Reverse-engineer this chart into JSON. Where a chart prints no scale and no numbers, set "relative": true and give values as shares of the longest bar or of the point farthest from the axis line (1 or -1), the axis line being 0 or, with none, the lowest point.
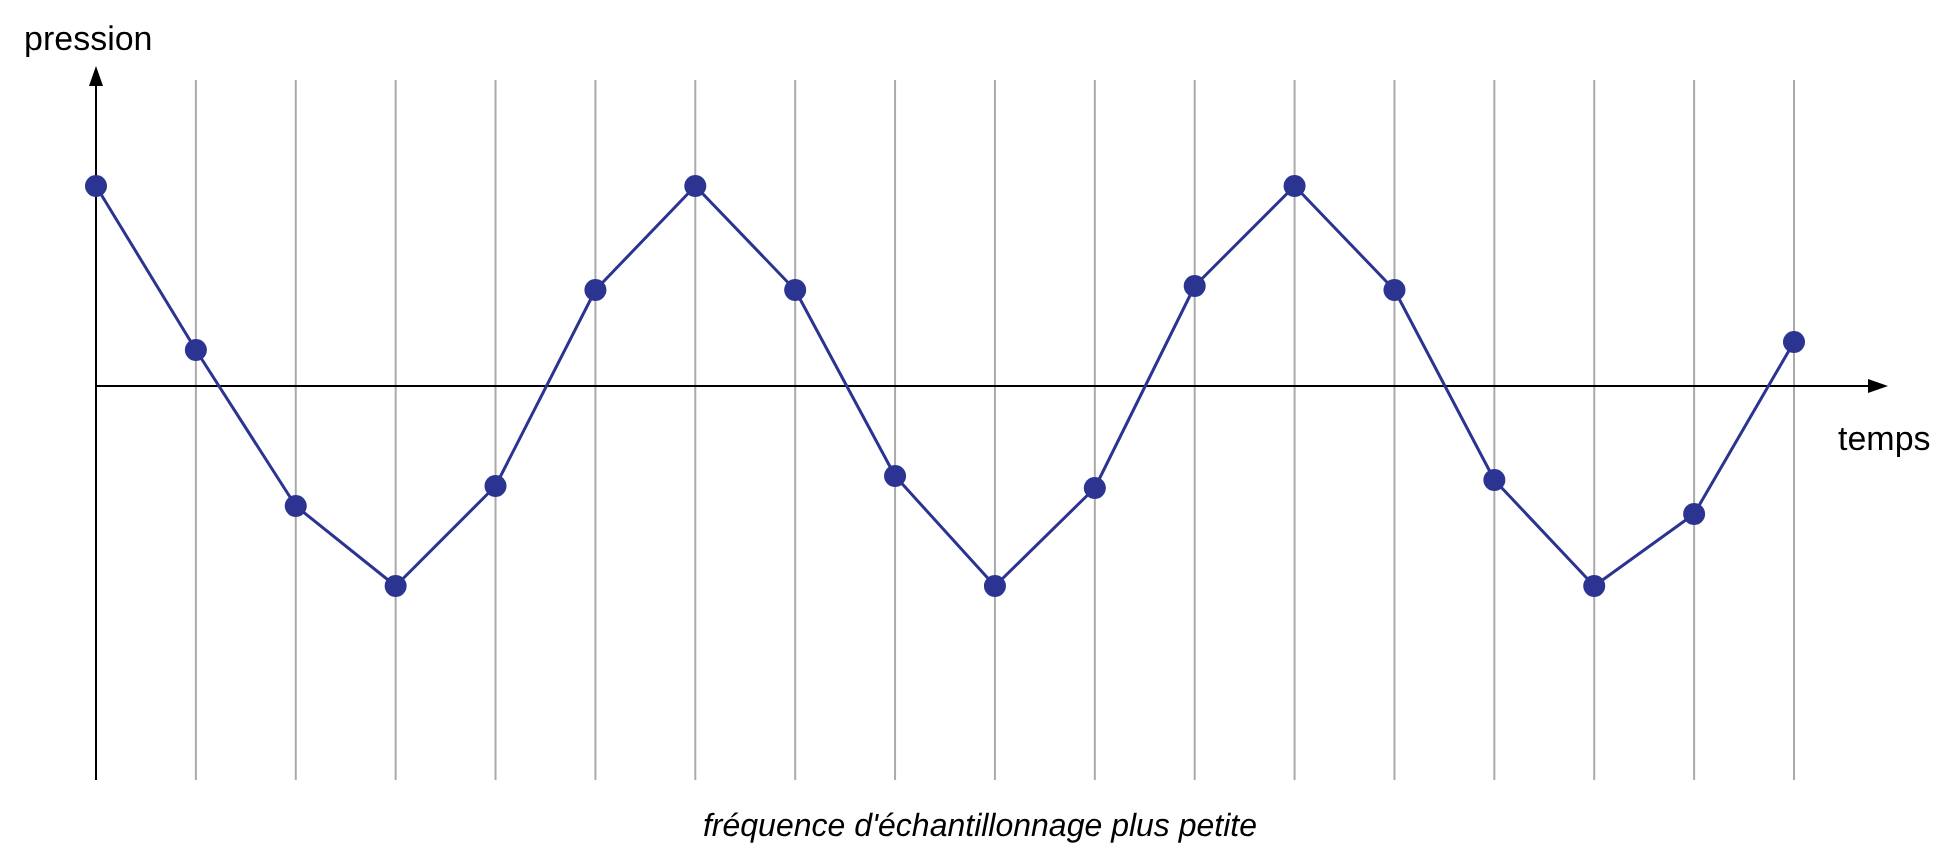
{
  "chart_data": {
    "type": "line",
    "relative": true,
    "ylabel": "pression",
    "xlabel": "temps",
    "annotations": [
      "fréquence d'échantillonnage plus petite"
    ],
    "categories": [
      null,
      null,
      null,
      null,
      null,
      null,
      null,
      null,
      null,
      null,
      null,
      null,
      null,
      null,
      null,
      null,
      null,
      null
    ],
    "series": [
      {
        "color": "#2b3491",
        "values": [
          1,
          0.18,
          -0.6,
          -1,
          -0.5,
          0.48,
          1,
          0.48,
          -0.45,
          -1,
          -0.51,
          0.5,
          1,
          0.48,
          -0.47,
          -1,
          -0.64,
          0.22
        ]
      }
    ],
    "grid": "x",
    "marker": "circle",
    "line_style": "solid"
  }
}
